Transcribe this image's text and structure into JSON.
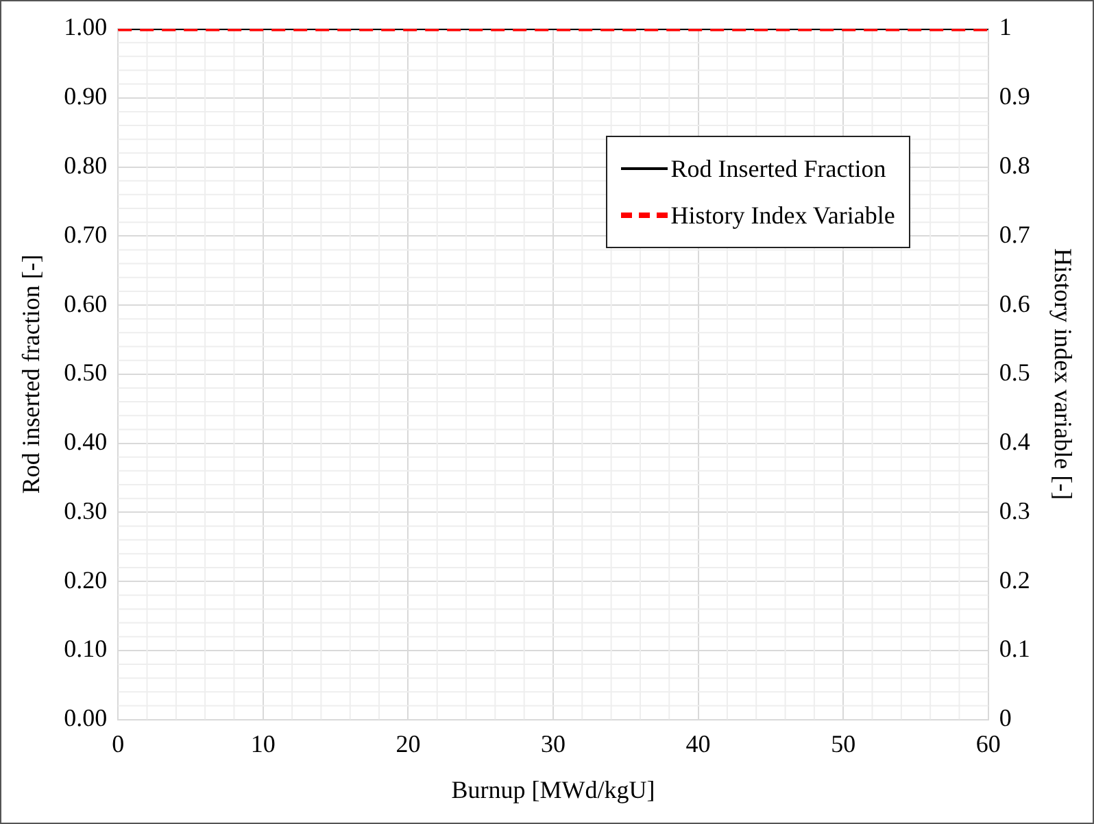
{
  "chart_data": {
    "type": "line",
    "xlabel": "Burnup [MWd/kgU]",
    "ylabel": "Rod inserted fraction [-]",
    "y2label": "History index variable [-]",
    "x": [
      0,
      60
    ],
    "series": [
      {
        "name": "Rod Inserted Fraction",
        "color": "#000000",
        "values": [
          1,
          1
        ],
        "line_style": "solid"
      },
      {
        "name": "History Index Variable",
        "color": "#ff0000",
        "values": [
          1,
          1
        ],
        "axis": "y2",
        "line_style": "dashed"
      }
    ],
    "xlim": [
      0,
      60
    ],
    "xticks": [
      0,
      10,
      20,
      30,
      40,
      50,
      60
    ],
    "ylim": [
      0,
      1
    ],
    "yticks": [
      {
        "value": 0,
        "label": "0.00"
      },
      {
        "value": 0.1,
        "label": "0.10"
      },
      {
        "value": 0.2,
        "label": "0.20"
      },
      {
        "value": 0.3,
        "label": "0.30"
      },
      {
        "value": 0.4,
        "label": "0.40"
      },
      {
        "value": 0.5,
        "label": "0.50"
      },
      {
        "value": 0.6,
        "label": "0.60"
      },
      {
        "value": 0.7,
        "label": "0.70"
      },
      {
        "value": 0.8,
        "label": "0.80"
      },
      {
        "value": 0.9,
        "label": "0.90"
      },
      {
        "value": 1,
        "label": "1.00"
      }
    ],
    "y2lim": [
      0,
      1
    ],
    "y2ticks": [
      0,
      0.1,
      0.2,
      0.3,
      0.4,
      0.5,
      0.6,
      0.7,
      0.8,
      0.9,
      1
    ],
    "grid": true,
    "legend": "top right",
    "marker": "none"
  }
}
